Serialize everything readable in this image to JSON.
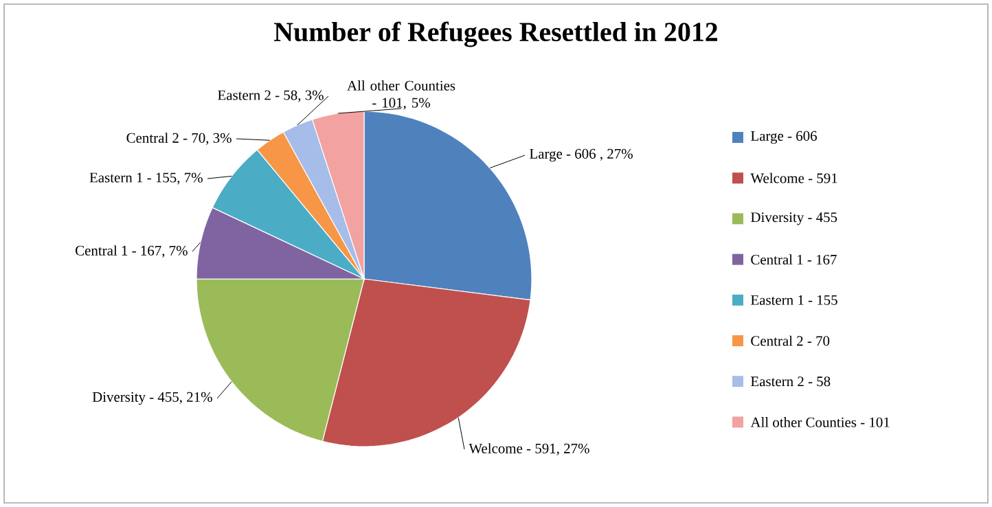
{
  "chart_data": {
    "type": "pie",
    "title": "Number of Refugees Resettled in 2012",
    "categories": [
      "Large - 606",
      "Welcome - 591",
      "Diversity - 455",
      "Central 1 - 167",
      "Eastern 1 - 155",
      "Central 2 - 70",
      "Eastern 2 - 58",
      "All other Counties - 101"
    ],
    "values": [
      27,
      27,
      21,
      7,
      7,
      3,
      3,
      5
    ],
    "value_labels": [
      "Large - 606 , 27%",
      "Welcome - 591, 27%",
      "Diversity - 455, 21%",
      "Central 1 - 167, 7%",
      "Eastern 1 - 155, 7%",
      "Central 2 - 70, 3%",
      "Eastern 2 - 58, 3%",
      "All other Counties - 101, 5%"
    ],
    "colors": [
      "#4f81bd",
      "#c0504d",
      "#9bbb59",
      "#8064a2",
      "#4bacc6",
      "#f79646",
      "#a5bde8",
      "#f2a2a0"
    ],
    "legend": "right"
  }
}
